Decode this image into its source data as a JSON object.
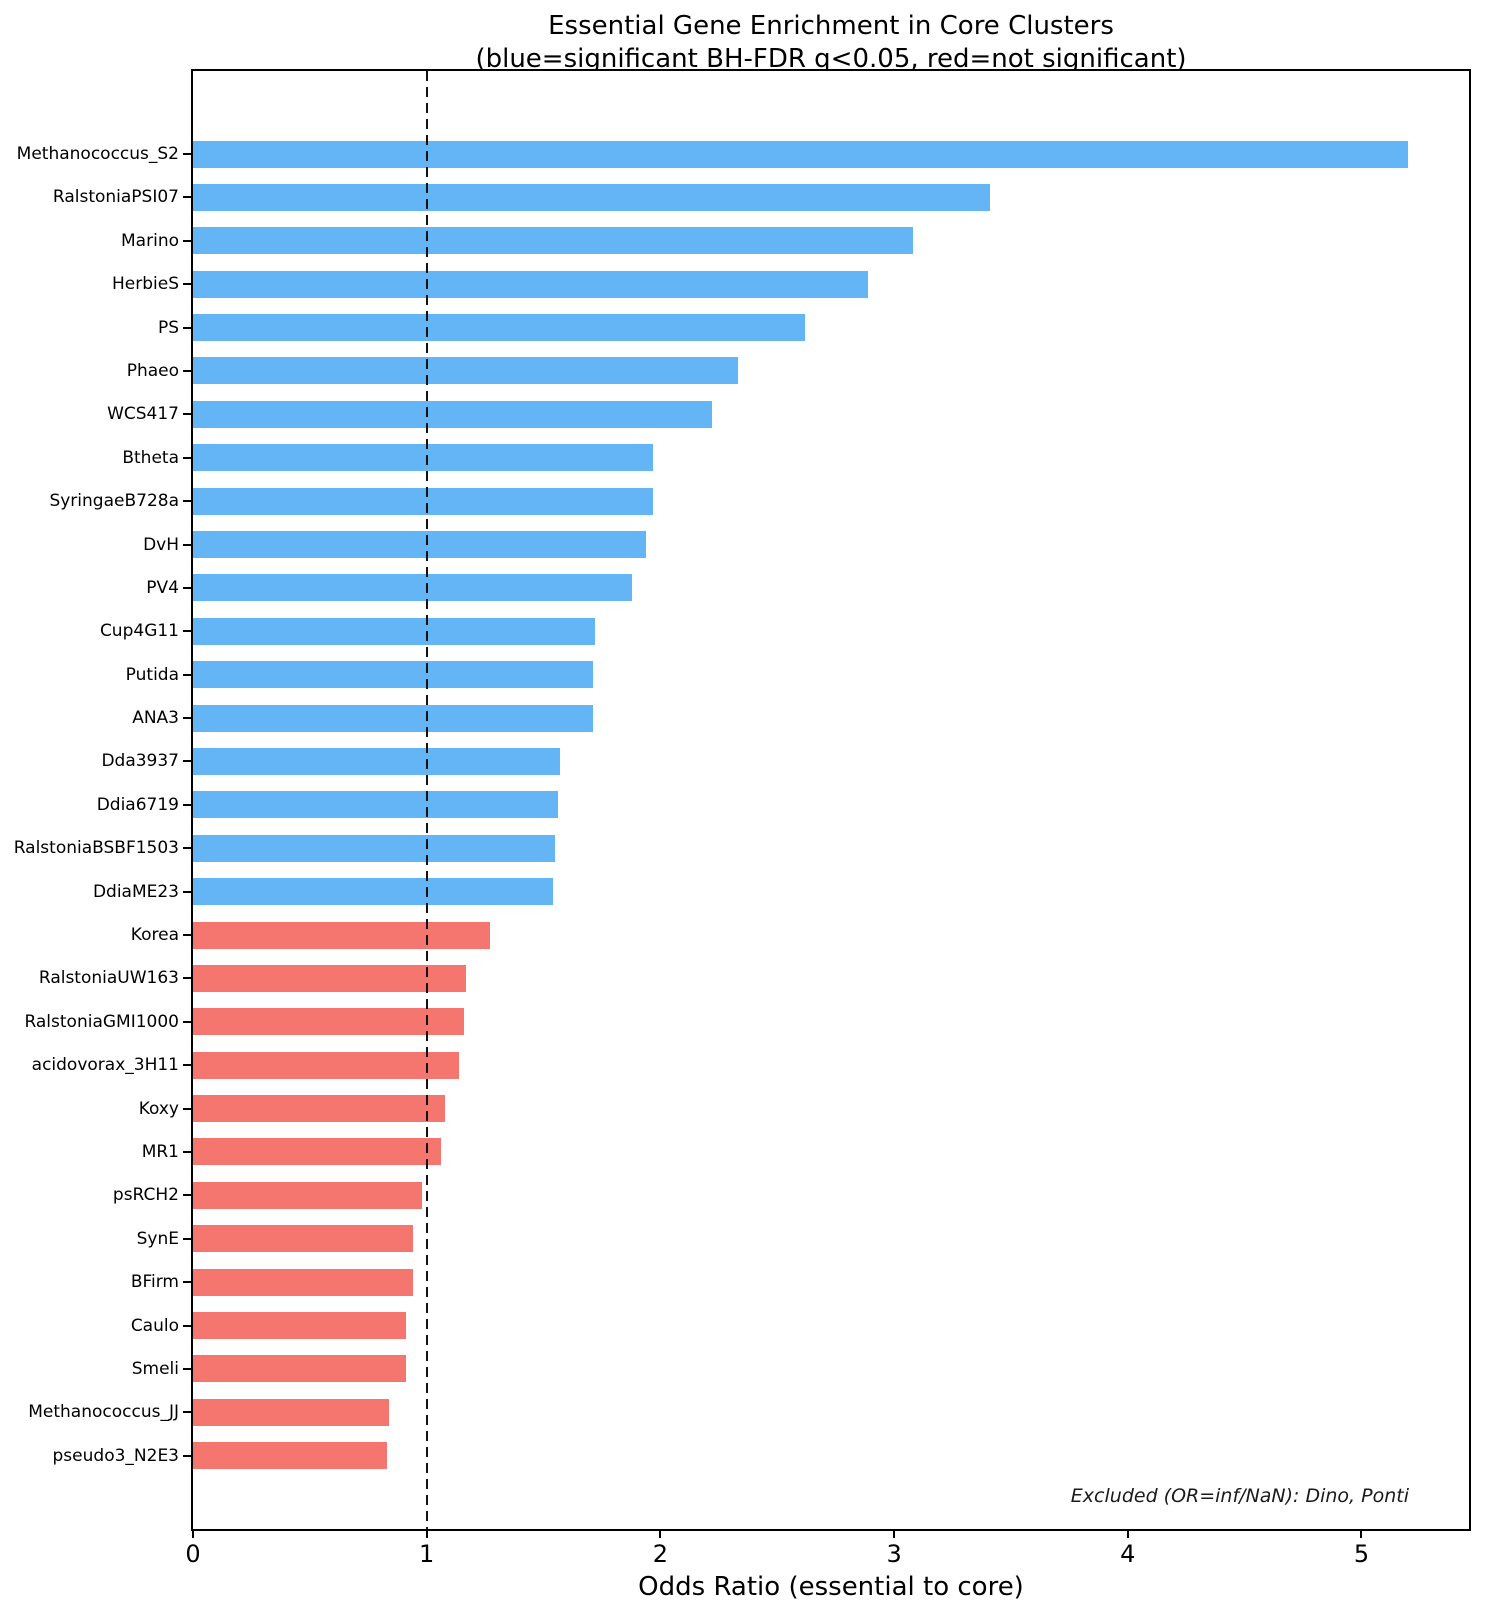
{
  "chart_data": {
    "type": "bar",
    "orientation": "horizontal",
    "title": "Essential Gene Enrichment in Core Clusters",
    "subtitle": "(blue=significant BH-FDR q<0.05, red=not significant)",
    "xlabel": "Odds Ratio (essential to core)",
    "xlim": [
      0,
      5.46
    ],
    "xticks": [
      0,
      1,
      2,
      3,
      4,
      5
    ],
    "grid": false,
    "reference_line": {
      "x": 1,
      "style": "dashed",
      "color": "#111111"
    },
    "annotation": "Excluded (OR=inf/NaN): Dino, Ponti",
    "colors": {
      "significant": "#64B5F6",
      "not_significant": "#F4766E"
    },
    "bars": [
      {
        "label": "Methanococcus_S2",
        "value": 5.2,
        "significant": true
      },
      {
        "label": "RalstoniaPSI07",
        "value": 3.41,
        "significant": true
      },
      {
        "label": "Marino",
        "value": 3.08,
        "significant": true
      },
      {
        "label": "HerbieS",
        "value": 2.89,
        "significant": true
      },
      {
        "label": "PS",
        "value": 2.62,
        "significant": true
      },
      {
        "label": "Phaeo",
        "value": 2.33,
        "significant": true
      },
      {
        "label": "WCS417",
        "value": 2.22,
        "significant": true
      },
      {
        "label": "Btheta",
        "value": 1.97,
        "significant": true
      },
      {
        "label": "SyringaeB728a",
        "value": 1.97,
        "significant": true
      },
      {
        "label": "DvH",
        "value": 1.94,
        "significant": true
      },
      {
        "label": "PV4",
        "value": 1.88,
        "significant": true
      },
      {
        "label": "Cup4G11",
        "value": 1.72,
        "significant": true
      },
      {
        "label": "Putida",
        "value": 1.71,
        "significant": true
      },
      {
        "label": "ANA3",
        "value": 1.71,
        "significant": true
      },
      {
        "label": "Dda3937",
        "value": 1.57,
        "significant": true
      },
      {
        "label": "Ddia6719",
        "value": 1.56,
        "significant": true
      },
      {
        "label": "RalstoniaBSBF1503",
        "value": 1.55,
        "significant": true
      },
      {
        "label": "DdiaME23",
        "value": 1.54,
        "significant": true
      },
      {
        "label": "Korea",
        "value": 1.27,
        "significant": false
      },
      {
        "label": "RalstoniaUW163",
        "value": 1.17,
        "significant": false
      },
      {
        "label": "RalstoniaGMI1000",
        "value": 1.16,
        "significant": false
      },
      {
        "label": "acidovorax_3H11",
        "value": 1.14,
        "significant": false
      },
      {
        "label": "Koxy",
        "value": 1.08,
        "significant": false
      },
      {
        "label": "MR1",
        "value": 1.06,
        "significant": false
      },
      {
        "label": "psRCH2",
        "value": 0.98,
        "significant": false
      },
      {
        "label": "SynE",
        "value": 0.94,
        "significant": false
      },
      {
        "label": "BFirm",
        "value": 0.94,
        "significant": false
      },
      {
        "label": "Caulo",
        "value": 0.91,
        "significant": false
      },
      {
        "label": "Smeli",
        "value": 0.91,
        "significant": false
      },
      {
        "label": "Methanococcus_JJ",
        "value": 0.84,
        "significant": false
      },
      {
        "label": "pseudo3_N2E3",
        "value": 0.83,
        "significant": false
      }
    ]
  }
}
